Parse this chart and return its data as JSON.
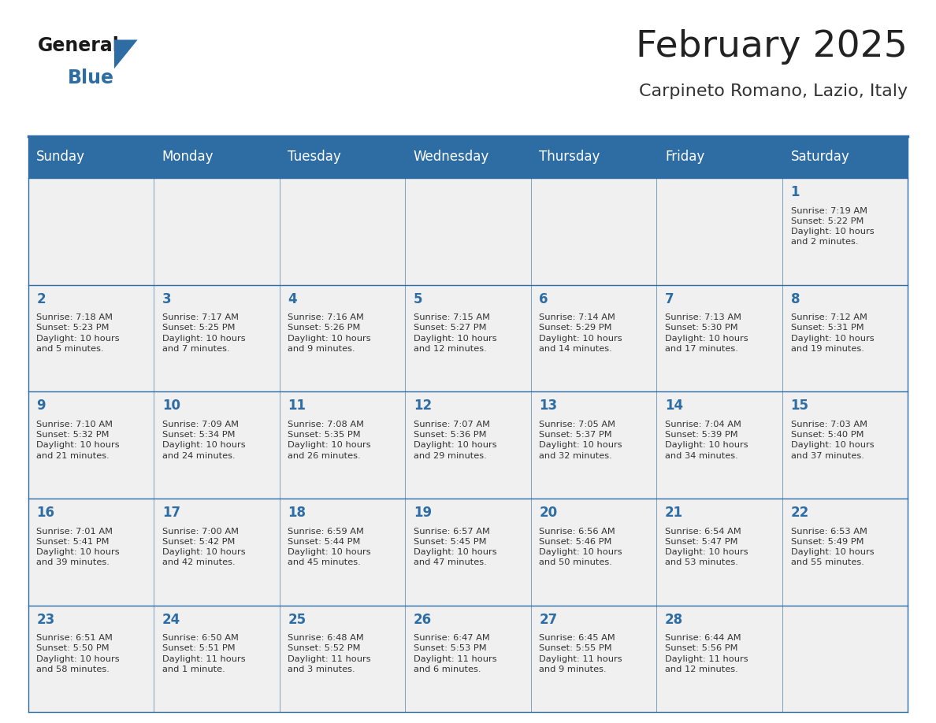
{
  "title": "February 2025",
  "subtitle": "Carpineto Romano, Lazio, Italy",
  "header_bg": "#2E6DA4",
  "header_text_color": "#FFFFFF",
  "cell_bg_light": "#F0F0F0",
  "day_number_color": "#2E6DA4",
  "info_text_color": "#333333",
  "border_color": "#2E6DA4",
  "days_of_week": [
    "Sunday",
    "Monday",
    "Tuesday",
    "Wednesday",
    "Thursday",
    "Friday",
    "Saturday"
  ],
  "logo_text_general": "General",
  "logo_text_blue": "Blue",
  "logo_color_general": "#1a1a1a",
  "logo_color_blue": "#2E6DA4",
  "calendar_data": {
    "1": {
      "sunrise": "7:19 AM",
      "sunset": "5:22 PM",
      "daylight": "10 hours\nand 2 minutes."
    },
    "2": {
      "sunrise": "7:18 AM",
      "sunset": "5:23 PM",
      "daylight": "10 hours\nand 5 minutes."
    },
    "3": {
      "sunrise": "7:17 AM",
      "sunset": "5:25 PM",
      "daylight": "10 hours\nand 7 minutes."
    },
    "4": {
      "sunrise": "7:16 AM",
      "sunset": "5:26 PM",
      "daylight": "10 hours\nand 9 minutes."
    },
    "5": {
      "sunrise": "7:15 AM",
      "sunset": "5:27 PM",
      "daylight": "10 hours\nand 12 minutes."
    },
    "6": {
      "sunrise": "7:14 AM",
      "sunset": "5:29 PM",
      "daylight": "10 hours\nand 14 minutes."
    },
    "7": {
      "sunrise": "7:13 AM",
      "sunset": "5:30 PM",
      "daylight": "10 hours\nand 17 minutes."
    },
    "8": {
      "sunrise": "7:12 AM",
      "sunset": "5:31 PM",
      "daylight": "10 hours\nand 19 minutes."
    },
    "9": {
      "sunrise": "7:10 AM",
      "sunset": "5:32 PM",
      "daylight": "10 hours\nand 21 minutes."
    },
    "10": {
      "sunrise": "7:09 AM",
      "sunset": "5:34 PM",
      "daylight": "10 hours\nand 24 minutes."
    },
    "11": {
      "sunrise": "7:08 AM",
      "sunset": "5:35 PM",
      "daylight": "10 hours\nand 26 minutes."
    },
    "12": {
      "sunrise": "7:07 AM",
      "sunset": "5:36 PM",
      "daylight": "10 hours\nand 29 minutes."
    },
    "13": {
      "sunrise": "7:05 AM",
      "sunset": "5:37 PM",
      "daylight": "10 hours\nand 32 minutes."
    },
    "14": {
      "sunrise": "7:04 AM",
      "sunset": "5:39 PM",
      "daylight": "10 hours\nand 34 minutes."
    },
    "15": {
      "sunrise": "7:03 AM",
      "sunset": "5:40 PM",
      "daylight": "10 hours\nand 37 minutes."
    },
    "16": {
      "sunrise": "7:01 AM",
      "sunset": "5:41 PM",
      "daylight": "10 hours\nand 39 minutes."
    },
    "17": {
      "sunrise": "7:00 AM",
      "sunset": "5:42 PM",
      "daylight": "10 hours\nand 42 minutes."
    },
    "18": {
      "sunrise": "6:59 AM",
      "sunset": "5:44 PM",
      "daylight": "10 hours\nand 45 minutes."
    },
    "19": {
      "sunrise": "6:57 AM",
      "sunset": "5:45 PM",
      "daylight": "10 hours\nand 47 minutes."
    },
    "20": {
      "sunrise": "6:56 AM",
      "sunset": "5:46 PM",
      "daylight": "10 hours\nand 50 minutes."
    },
    "21": {
      "sunrise": "6:54 AM",
      "sunset": "5:47 PM",
      "daylight": "10 hours\nand 53 minutes."
    },
    "22": {
      "sunrise": "6:53 AM",
      "sunset": "5:49 PM",
      "daylight": "10 hours\nand 55 minutes."
    },
    "23": {
      "sunrise": "6:51 AM",
      "sunset": "5:50 PM",
      "daylight": "10 hours\nand 58 minutes."
    },
    "24": {
      "sunrise": "6:50 AM",
      "sunset": "5:51 PM",
      "daylight": "11 hours\nand 1 minute."
    },
    "25": {
      "sunrise": "6:48 AM",
      "sunset": "5:52 PM",
      "daylight": "11 hours\nand 3 minutes."
    },
    "26": {
      "sunrise": "6:47 AM",
      "sunset": "5:53 PM",
      "daylight": "11 hours\nand 6 minutes."
    },
    "27": {
      "sunrise": "6:45 AM",
      "sunset": "5:55 PM",
      "daylight": "11 hours\nand 9 minutes."
    },
    "28": {
      "sunrise": "6:44 AM",
      "sunset": "5:56 PM",
      "daylight": "11 hours\nand 12 minutes."
    }
  },
  "week_layout": [
    [
      null,
      null,
      null,
      null,
      null,
      null,
      1
    ],
    [
      2,
      3,
      4,
      5,
      6,
      7,
      8
    ],
    [
      9,
      10,
      11,
      12,
      13,
      14,
      15
    ],
    [
      16,
      17,
      18,
      19,
      20,
      21,
      22
    ],
    [
      23,
      24,
      25,
      26,
      27,
      28,
      null
    ]
  ]
}
